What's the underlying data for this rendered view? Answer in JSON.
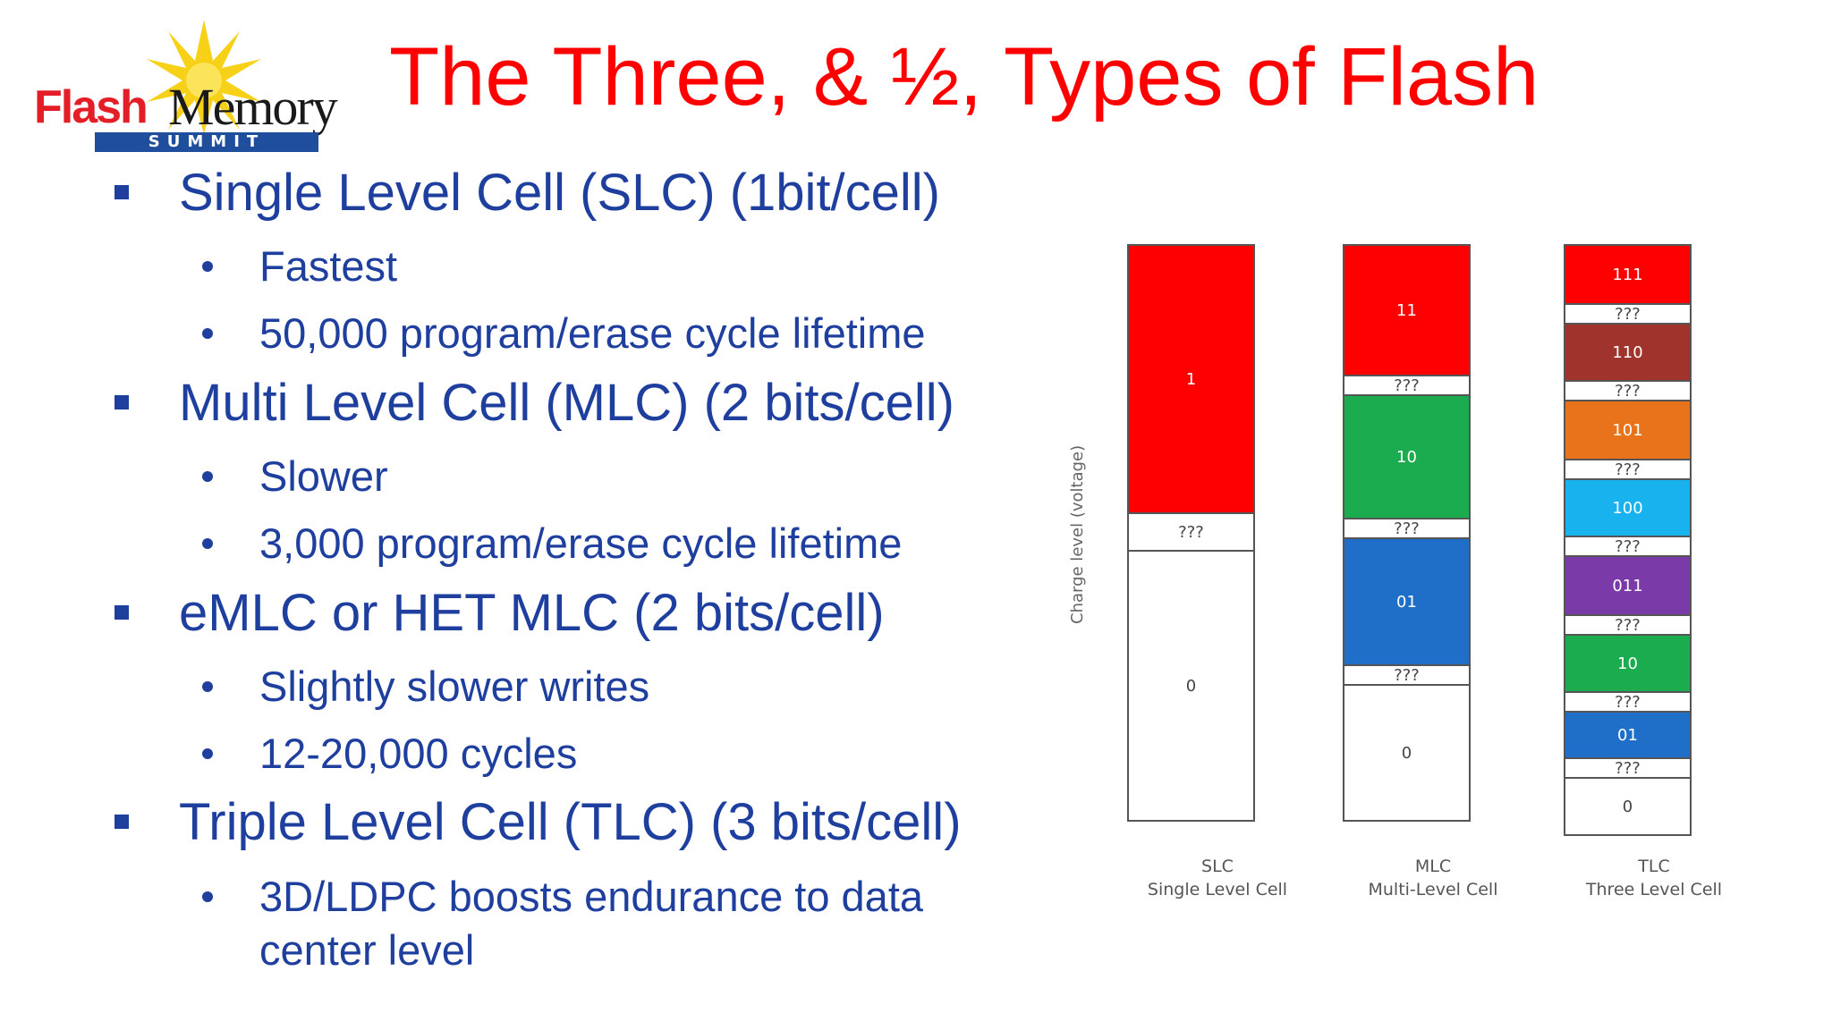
{
  "logo": {
    "word1": "Flash",
    "word2": "Memory",
    "badge": "SUMMIT"
  },
  "title": "The Three, & ½, Types of Flash",
  "bullets": [
    {
      "text": "Single Level Cell (SLC) (1bit/cell)",
      "sub": [
        "Fastest",
        "50,000 program/erase cycle lifetime"
      ]
    },
    {
      "text": "Multi Level Cell (MLC) (2 bits/cell)",
      "sub": [
        "Slower",
        "3,000 program/erase cycle lifetime"
      ]
    },
    {
      "text": "eMLC or HET MLC (2 bits/cell)",
      "sub": [
        "Slightly slower writes",
        "12-20,000 cycles"
      ]
    },
    {
      "text": "Triple Level Cell (TLC) (3 bits/cell)",
      "sub": [
        "3D/LDPC boosts endurance to data",
        "center level"
      ]
    }
  ],
  "diagram": {
    "axis_label": "Charge level (voltage)",
    "columns": [
      {
        "name": "SLC",
        "subtitle": "Single Level Cell",
        "segments": [
          {
            "label": "1",
            "color": "#ff0000"
          },
          {
            "label": "???",
            "color": "#ffffff"
          },
          {
            "label": "0",
            "color": "#ffffff"
          }
        ]
      },
      {
        "name": "MLC",
        "subtitle": "Multi-Level Cell",
        "segments": [
          {
            "label": "11",
            "color": "#ff0000"
          },
          {
            "label": "???",
            "color": "#ffffff"
          },
          {
            "label": "10",
            "color": "#1aac4e"
          },
          {
            "label": "???",
            "color": "#ffffff"
          },
          {
            "label": "01",
            "color": "#1f6fc8"
          },
          {
            "label": "???",
            "color": "#ffffff"
          },
          {
            "label": "0",
            "color": "#ffffff"
          }
        ]
      },
      {
        "name": "TLC",
        "subtitle": "Three Level Cell",
        "segments": [
          {
            "label": "111",
            "color": "#ff0000"
          },
          {
            "label": "???",
            "color": "#ffffff"
          },
          {
            "label": "110",
            "color": "#a0342c"
          },
          {
            "label": "???",
            "color": "#ffffff"
          },
          {
            "label": "101",
            "color": "#e8731a"
          },
          {
            "label": "???",
            "color": "#ffffff"
          },
          {
            "label": "100",
            "color": "#18b2ee"
          },
          {
            "label": "???",
            "color": "#ffffff"
          },
          {
            "label": "011",
            "color": "#7a3aa8"
          },
          {
            "label": "???",
            "color": "#ffffff"
          },
          {
            "label": "10",
            "color": "#1aac4e"
          },
          {
            "label": "???",
            "color": "#ffffff"
          },
          {
            "label": "01",
            "color": "#1f6fc8"
          },
          {
            "label": "???",
            "color": "#ffffff"
          },
          {
            "label": "0",
            "color": "#ffffff"
          }
        ]
      }
    ]
  }
}
